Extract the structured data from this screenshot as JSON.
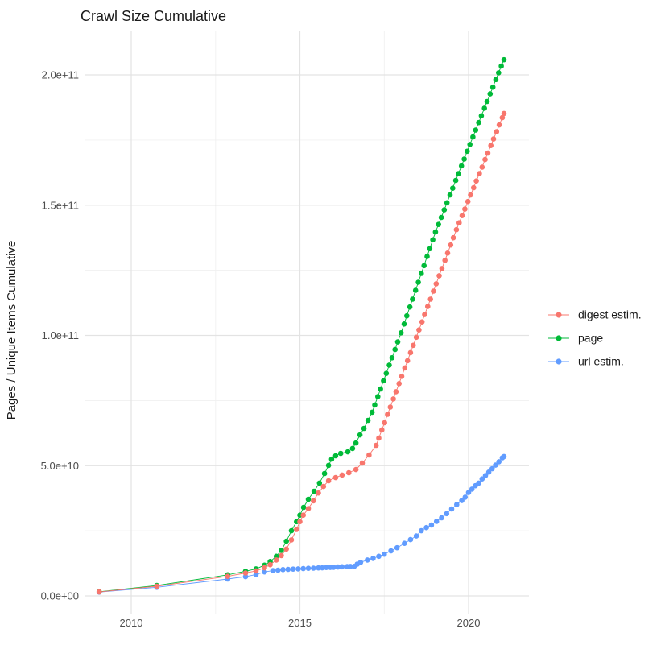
{
  "chart_data": {
    "type": "scatter",
    "title": "Crawl Size Cumulative",
    "ylabel": "Pages / Unique Items Cumulative",
    "xlabel": "",
    "grid": true,
    "legend_position": "right",
    "value_scale": 1000000000,
    "x_range_years": [
      2008.6,
      2021.8
    ],
    "y_range_billions": [
      0,
      212
    ],
    "x_ticks": [
      {
        "label": "2010",
        "year": 2010
      },
      {
        "label": "2015",
        "year": 2015
      },
      {
        "label": "2020",
        "year": 2020
      }
    ],
    "x_minor": [
      2012.5,
      2017.5
    ],
    "y_ticks": [
      {
        "label": "0.0e+00",
        "value": 0
      },
      {
        "label": "5.0e+10",
        "value": 50
      },
      {
        "label": "1.0e+11",
        "value": 100
      },
      {
        "label": "1.5e+11",
        "value": 150
      },
      {
        "label": "2.0e+11",
        "value": 200
      }
    ],
    "y_minor": [
      25,
      75,
      125,
      175
    ],
    "draw_order": [
      2,
      1,
      0
    ],
    "series": [
      {
        "name": "digest estim.",
        "color": "#F8766D",
        "points": [
          [
            2009.05,
            1.5
          ],
          [
            2010.76,
            3.7
          ],
          [
            2012.86,
            7.5
          ],
          [
            2013.39,
            8.8
          ],
          [
            2013.7,
            9.6
          ],
          [
            2013.95,
            10.8
          ],
          [
            2014.12,
            12.0
          ],
          [
            2014.3,
            13.8
          ],
          [
            2014.45,
            15.5
          ],
          [
            2014.6,
            18.0
          ],
          [
            2014.75,
            21.5
          ],
          [
            2014.9,
            25.5
          ],
          [
            2015.0,
            28.5
          ],
          [
            2015.1,
            31.0
          ],
          [
            2015.25,
            33.5
          ],
          [
            2015.4,
            36.5
          ],
          [
            2015.55,
            39.5
          ],
          [
            2015.7,
            42.0
          ],
          [
            2015.85,
            44.2
          ],
          [
            2016.06,
            45.4
          ],
          [
            2016.25,
            46.4
          ],
          [
            2016.45,
            47.3
          ],
          [
            2016.66,
            48.5
          ],
          [
            2016.85,
            51.0
          ],
          [
            2017.05,
            54.1
          ],
          [
            2017.26,
            57.8
          ],
          [
            2017.34,
            60.6
          ],
          [
            2017.43,
            63.7
          ],
          [
            2017.51,
            66.5
          ],
          [
            2017.6,
            69.7
          ],
          [
            2017.68,
            72.5
          ],
          [
            2017.77,
            75.6
          ],
          [
            2017.85,
            78.4
          ],
          [
            2017.94,
            81.5
          ],
          [
            2018.02,
            84.3
          ],
          [
            2018.11,
            87.5
          ],
          [
            2018.19,
            90.3
          ],
          [
            2018.28,
            93.4
          ],
          [
            2018.36,
            96.2
          ],
          [
            2018.45,
            99.3
          ],
          [
            2018.53,
            102.1
          ],
          [
            2018.62,
            105.2
          ],
          [
            2018.7,
            108.0
          ],
          [
            2018.79,
            111.1
          ],
          [
            2018.87,
            113.9
          ],
          [
            2018.96,
            117.0
          ],
          [
            2019.04,
            119.8
          ],
          [
            2019.13,
            122.9
          ],
          [
            2019.21,
            125.7
          ],
          [
            2019.3,
            128.8
          ],
          [
            2019.38,
            131.6
          ],
          [
            2019.47,
            134.7
          ],
          [
            2019.55,
            137.5
          ],
          [
            2019.64,
            140.6
          ],
          [
            2019.72,
            143.2
          ],
          [
            2019.81,
            146.0
          ],
          [
            2019.89,
            148.5
          ],
          [
            2019.98,
            151.4
          ],
          [
            2020.06,
            153.9
          ],
          [
            2020.15,
            156.7
          ],
          [
            2020.23,
            159.3
          ],
          [
            2020.32,
            162.1
          ],
          [
            2020.4,
            164.6
          ],
          [
            2020.49,
            167.5
          ],
          [
            2020.57,
            170.0
          ],
          [
            2020.66,
            172.9
          ],
          [
            2020.74,
            175.4
          ],
          [
            2020.83,
            178.2
          ],
          [
            2020.91,
            180.8
          ],
          [
            2021.0,
            183.6
          ],
          [
            2021.05,
            185.2
          ]
        ]
      },
      {
        "name": "page",
        "color": "#00BA38",
        "points": [
          [
            2009.05,
            1.6
          ],
          [
            2010.76,
            4.0
          ],
          [
            2012.86,
            8.1
          ],
          [
            2013.39,
            9.5
          ],
          [
            2013.7,
            10.4
          ],
          [
            2013.95,
            11.8
          ],
          [
            2014.12,
            13.2
          ],
          [
            2014.3,
            15.2
          ],
          [
            2014.45,
            17.5
          ],
          [
            2014.6,
            21.0
          ],
          [
            2014.75,
            25.0
          ],
          [
            2014.9,
            28.5
          ],
          [
            2015.0,
            31.0
          ],
          [
            2015.11,
            34.0
          ],
          [
            2015.25,
            37.1
          ],
          [
            2015.42,
            40.2
          ],
          [
            2015.58,
            43.3
          ],
          [
            2015.73,
            47.0
          ],
          [
            2015.85,
            50.1
          ],
          [
            2015.94,
            52.5
          ],
          [
            2016.06,
            53.8
          ],
          [
            2016.21,
            54.7
          ],
          [
            2016.42,
            55.3
          ],
          [
            2016.56,
            56.6
          ],
          [
            2016.66,
            58.7
          ],
          [
            2016.78,
            61.8
          ],
          [
            2016.9,
            64.3
          ],
          [
            2017.02,
            67.4
          ],
          [
            2017.14,
            70.5
          ],
          [
            2017.22,
            73.3
          ],
          [
            2017.31,
            76.5
          ],
          [
            2017.39,
            79.4
          ],
          [
            2017.48,
            82.6
          ],
          [
            2017.56,
            85.4
          ],
          [
            2017.65,
            88.6
          ],
          [
            2017.73,
            91.4
          ],
          [
            2017.82,
            94.6
          ],
          [
            2017.9,
            97.5
          ],
          [
            2018.0,
            101.0
          ],
          [
            2018.09,
            104.4
          ],
          [
            2018.17,
            107.5
          ],
          [
            2018.26,
            110.9
          ],
          [
            2018.34,
            113.9
          ],
          [
            2018.43,
            117.3
          ],
          [
            2018.51,
            120.4
          ],
          [
            2018.6,
            123.8
          ],
          [
            2018.68,
            126.8
          ],
          [
            2018.77,
            130.3
          ],
          [
            2018.85,
            133.3
          ],
          [
            2018.94,
            136.7
          ],
          [
            2019.02,
            139.7
          ],
          [
            2019.11,
            142.6
          ],
          [
            2019.19,
            145.3
          ],
          [
            2019.28,
            148.2
          ],
          [
            2019.36,
            150.9
          ],
          [
            2019.45,
            153.9
          ],
          [
            2019.53,
            156.5
          ],
          [
            2019.62,
            159.5
          ],
          [
            2019.7,
            162.1
          ],
          [
            2019.79,
            165.1
          ],
          [
            2019.87,
            167.7
          ],
          [
            2019.96,
            170.7
          ],
          [
            2020.04,
            173.3
          ],
          [
            2020.13,
            176.2
          ],
          [
            2020.21,
            178.8
          ],
          [
            2020.3,
            181.7
          ],
          [
            2020.38,
            184.3
          ],
          [
            2020.47,
            187.2
          ],
          [
            2020.55,
            189.8
          ],
          [
            2020.64,
            192.7
          ],
          [
            2020.72,
            195.3
          ],
          [
            2020.81,
            198.2
          ],
          [
            2020.89,
            200.8
          ],
          [
            2020.97,
            203.4
          ],
          [
            2021.05,
            205.8
          ]
        ]
      },
      {
        "name": "url estim.",
        "color": "#619CFF",
        "points": [
          [
            2009.05,
            1.45
          ],
          [
            2010.76,
            3.3
          ],
          [
            2012.86,
            6.5
          ],
          [
            2013.39,
            7.4
          ],
          [
            2013.7,
            8.2
          ],
          [
            2013.95,
            9.2
          ],
          [
            2014.2,
            9.7
          ],
          [
            2014.35,
            9.9
          ],
          [
            2014.5,
            10.1
          ],
          [
            2014.65,
            10.2
          ],
          [
            2014.8,
            10.3
          ],
          [
            2014.95,
            10.4
          ],
          [
            2015.1,
            10.5
          ],
          [
            2015.25,
            10.6
          ],
          [
            2015.4,
            10.65
          ],
          [
            2015.55,
            10.75
          ],
          [
            2015.66,
            10.8
          ],
          [
            2015.78,
            10.9
          ],
          [
            2015.9,
            10.95
          ],
          [
            2016.0,
            11.0
          ],
          [
            2016.13,
            11.1
          ],
          [
            2016.25,
            11.2
          ],
          [
            2016.4,
            11.25
          ],
          [
            2016.5,
            11.3
          ],
          [
            2016.61,
            11.35
          ],
          [
            2016.7,
            12.2
          ],
          [
            2016.8,
            12.9
          ],
          [
            2017.0,
            13.8
          ],
          [
            2017.17,
            14.4
          ],
          [
            2017.34,
            15.2
          ],
          [
            2017.5,
            16.0
          ],
          [
            2017.7,
            17.3
          ],
          [
            2017.88,
            18.5
          ],
          [
            2018.1,
            20.2
          ],
          [
            2018.28,
            21.6
          ],
          [
            2018.45,
            23.0
          ],
          [
            2018.6,
            25.0
          ],
          [
            2018.75,
            26.2
          ],
          [
            2018.9,
            27.2
          ],
          [
            2019.05,
            28.6
          ],
          [
            2019.2,
            30.0
          ],
          [
            2019.35,
            31.6
          ],
          [
            2019.5,
            33.4
          ],
          [
            2019.65,
            35.1
          ],
          [
            2019.8,
            36.6
          ],
          [
            2019.9,
            37.9
          ],
          [
            2020.0,
            39.7
          ],
          [
            2020.1,
            41.0
          ],
          [
            2020.2,
            42.3
          ],
          [
            2020.3,
            43.3
          ],
          [
            2020.4,
            44.9
          ],
          [
            2020.5,
            46.2
          ],
          [
            2020.6,
            47.5
          ],
          [
            2020.7,
            48.8
          ],
          [
            2020.8,
            50.2
          ],
          [
            2020.9,
            51.5
          ],
          [
            2021.0,
            53.0
          ],
          [
            2021.05,
            53.5
          ]
        ]
      }
    ]
  }
}
